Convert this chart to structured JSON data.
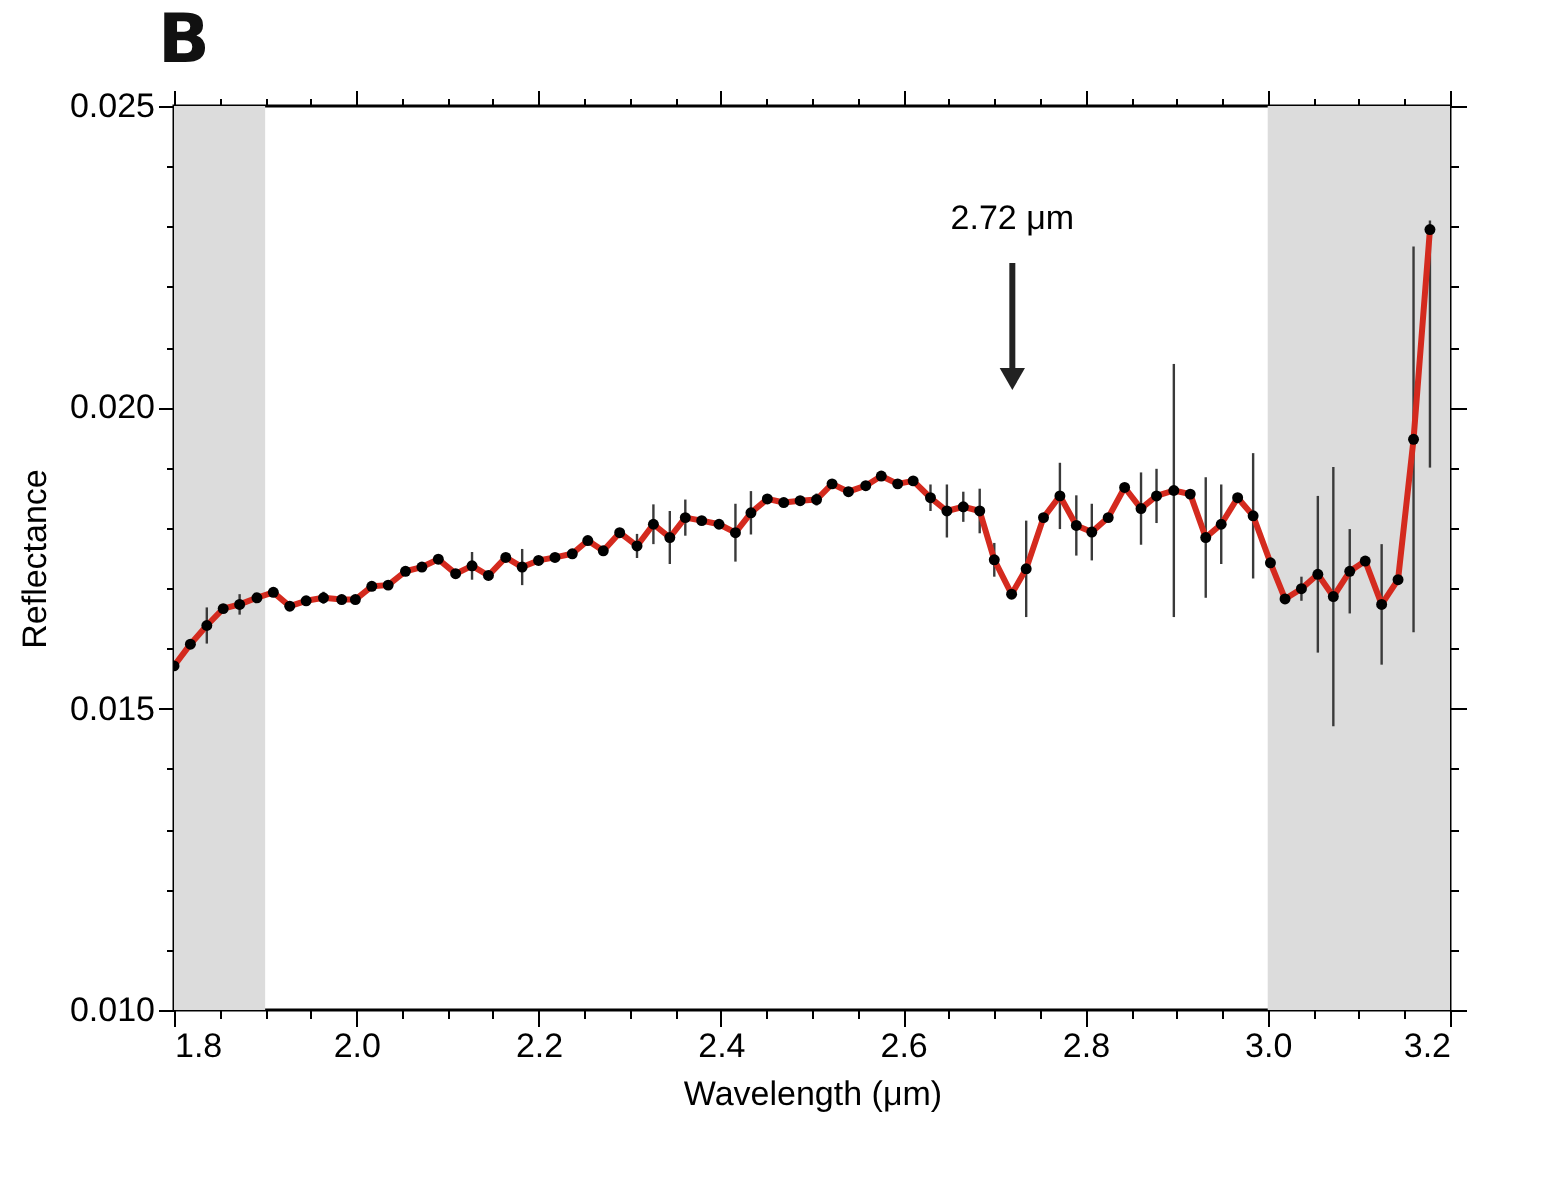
{
  "chart_data": {
    "type": "line",
    "title": "B",
    "xlabel": "Wavelength (μm)",
    "ylabel": "Reflectance",
    "x": [
      1.8,
      1.818,
      1.836,
      1.854,
      1.872,
      1.891,
      1.909,
      1.927,
      1.945,
      1.964,
      1.984,
      1.999,
      2.017,
      2.035,
      2.054,
      2.072,
      2.09,
      2.109,
      2.127,
      2.145,
      2.164,
      2.182,
      2.2,
      2.218,
      2.237,
      2.254,
      2.271,
      2.289,
      2.308,
      2.326,
      2.344,
      2.361,
      2.379,
      2.398,
      2.416,
      2.433,
      2.451,
      2.469,
      2.487,
      2.505,
      2.522,
      2.54,
      2.559,
      2.576,
      2.594,
      2.611,
      2.63,
      2.648,
      2.666,
      2.684,
      2.7,
      2.719,
      2.735,
      2.754,
      2.772,
      2.79,
      2.807,
      2.825,
      2.843,
      2.861,
      2.878,
      2.897,
      2.915,
      2.932,
      2.949,
      2.967,
      2.984,
      3.003,
      3.019,
      3.037,
      3.055,
      3.072,
      3.09,
      3.107,
      3.125,
      3.143,
      3.16,
      3.178
    ],
    "series": [
      {
        "color": "#d42a1e",
        "values": [
          0.01571,
          0.01607,
          0.01638,
          0.01666,
          0.01673,
          0.01684,
          0.01693,
          0.0167,
          0.01679,
          0.01684,
          0.01681,
          0.01681,
          0.01703,
          0.01705,
          0.01728,
          0.01735,
          0.01748,
          0.01724,
          0.01737,
          0.01721,
          0.01751,
          0.01735,
          0.01746,
          0.01751,
          0.01757,
          0.01779,
          0.01762,
          0.01792,
          0.0177,
          0.01806,
          0.01784,
          0.01817,
          0.01812,
          0.01806,
          0.01792,
          0.01825,
          0.01848,
          0.01842,
          0.01845,
          0.01847,
          0.01873,
          0.0186,
          0.0187,
          0.01886,
          0.01873,
          0.01878,
          0.0185,
          0.01828,
          0.01835,
          0.01828,
          0.01747,
          0.0169,
          0.01732,
          0.01817,
          0.01853,
          0.01804,
          0.01793,
          0.01817,
          0.01867,
          0.01832,
          0.01853,
          0.01862,
          0.01856,
          0.01784,
          0.01806,
          0.0185,
          0.0182,
          0.01742,
          0.01682,
          0.01699,
          0.01723,
          0.01686,
          0.01728,
          0.01745,
          0.01673,
          0.01714,
          0.01947,
          0.02295
        ],
        "errors": [
          null,
          null,
          0.0003,
          null,
          0.00017,
          null,
          null,
          null,
          null,
          0.0001,
          null,
          null,
          null,
          null,
          null,
          null,
          null,
          null,
          0.00023,
          null,
          null,
          0.0003,
          null,
          null,
          null,
          null,
          null,
          null,
          0.0002,
          0.00033,
          0.00044,
          0.0003,
          null,
          null,
          0.00048,
          0.00036,
          null,
          null,
          null,
          0.0001,
          null,
          null,
          null,
          null,
          null,
          null,
          0.00022,
          0.00044,
          0.00025,
          0.00037,
          0.00028,
          null,
          0.0008,
          null,
          0.00055,
          0.0005,
          0.00047,
          null,
          null,
          0.0006,
          0.00045,
          0.0021,
          null,
          0.001,
          0.00066,
          null,
          0.00104,
          null,
          null,
          0.0002,
          0.0013,
          0.00215,
          0.0007,
          null,
          0.001,
          null,
          0.0032,
          [
            0.019,
            0.0231
          ]
        ]
      }
    ],
    "marker": "circle",
    "line_style": "solid",
    "grid": false,
    "xlim": [
      1.8,
      3.2
    ],
    "xticks": [
      {
        "value": 1.8,
        "label": "1.8"
      },
      {
        "value": 2.0,
        "label": "2.0"
      },
      {
        "value": 2.2,
        "label": "2.2"
      },
      {
        "value": 2.4,
        "label": "2.4"
      },
      {
        "value": 2.6,
        "label": "2.6"
      },
      {
        "value": 2.8,
        "label": "2.8"
      },
      {
        "value": 3.0,
        "label": "3.0"
      },
      {
        "value": 3.2,
        "label": "3.2"
      },
      {
        "value": 1.85,
        "label": null
      },
      {
        "value": 1.9,
        "label": null
      },
      {
        "value": 1.95,
        "label": null
      },
      {
        "value": 2.05,
        "label": null
      },
      {
        "value": 2.1,
        "label": null
      },
      {
        "value": 2.15,
        "label": null
      },
      {
        "value": 2.25,
        "label": null
      },
      {
        "value": 2.3,
        "label": null
      },
      {
        "value": 2.35,
        "label": null
      },
      {
        "value": 2.45,
        "label": null
      },
      {
        "value": 2.5,
        "label": null
      },
      {
        "value": 2.55,
        "label": null
      },
      {
        "value": 2.65,
        "label": null
      },
      {
        "value": 2.7,
        "label": null
      },
      {
        "value": 2.75,
        "label": null
      },
      {
        "value": 2.85,
        "label": null
      },
      {
        "value": 2.9,
        "label": null
      },
      {
        "value": 2.95,
        "label": null
      },
      {
        "value": 3.05,
        "label": null
      },
      {
        "value": 3.1,
        "label": null
      },
      {
        "value": 3.15,
        "label": null
      }
    ],
    "ylim": [
      0.01,
      0.025
    ],
    "yticks": [
      {
        "value": 0.01,
        "label": "0.010"
      },
      {
        "value": 0.015,
        "label": "0.015"
      },
      {
        "value": 0.02,
        "label": "0.020"
      },
      {
        "value": 0.025,
        "label": "0.025"
      },
      {
        "value": 0.011,
        "label": null
      },
      {
        "value": 0.012,
        "label": null
      },
      {
        "value": 0.013,
        "label": null
      },
      {
        "value": 0.014,
        "label": null
      },
      {
        "value": 0.016,
        "label": null
      },
      {
        "value": 0.017,
        "label": null
      },
      {
        "value": 0.018,
        "label": null
      },
      {
        "value": 0.019,
        "label": null
      },
      {
        "value": 0.021,
        "label": null
      },
      {
        "value": 0.022,
        "label": null
      },
      {
        "value": 0.023,
        "label": null
      },
      {
        "value": 0.024,
        "label": null
      }
    ],
    "bands": [
      {
        "axis": "x",
        "from": 1.8,
        "to": 1.9,
        "color": "#dcdcdc"
      },
      {
        "axis": "x",
        "from": 3.0,
        "to": 3.2,
        "color": "#dcdcdc"
      }
    ],
    "annotations": [
      "2.72 μm"
    ]
  }
}
